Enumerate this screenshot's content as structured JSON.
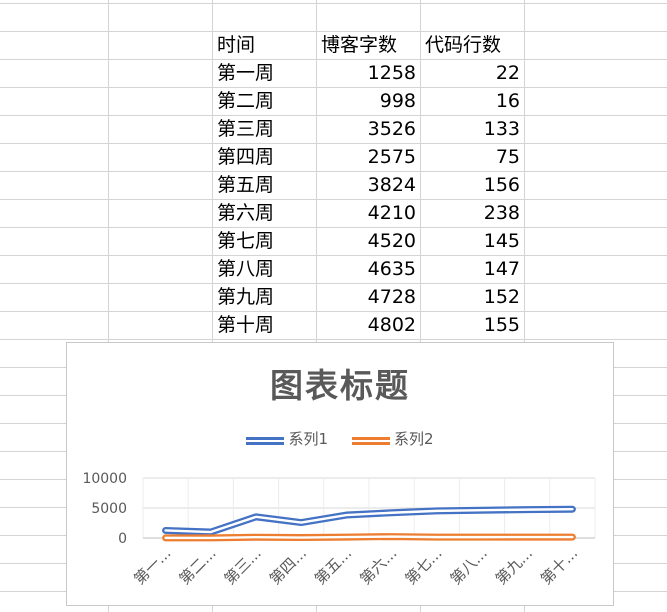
{
  "table": {
    "headers": [
      "时间",
      "博客字数",
      "代码行数"
    ],
    "rows": [
      [
        "第一周",
        "1258",
        "22"
      ],
      [
        "第二周",
        "998",
        "16"
      ],
      [
        "第三周",
        "3526",
        "133"
      ],
      [
        "第四周",
        "2575",
        "75"
      ],
      [
        "第五周",
        "3824",
        "156"
      ],
      [
        "第六周",
        "4210",
        "238"
      ],
      [
        "第七周",
        "4520",
        "145"
      ],
      [
        "第八周",
        "4635",
        "147"
      ],
      [
        "第九周",
        "4728",
        "152"
      ],
      [
        "第十周",
        "4802",
        "155"
      ]
    ]
  },
  "chart_data": {
    "type": "line",
    "title": "图表标题",
    "categories": [
      "第一周",
      "第二周",
      "第三周",
      "第四周",
      "第五周",
      "第六周",
      "第七周",
      "第八周",
      "第九周",
      "第十周"
    ],
    "tick_labels": [
      "第一...",
      "第二...",
      "第三...",
      "第四...",
      "第五...",
      "第六...",
      "第七...",
      "第八...",
      "第九...",
      "第十..."
    ],
    "series": [
      {
        "name": "系列1",
        "color": "#4472c4",
        "values": [
          1258,
          998,
          3526,
          2575,
          3824,
          4210,
          4520,
          4635,
          4728,
          4802
        ]
      },
      {
        "name": "系列2",
        "color": "#ed7d31",
        "values": [
          22,
          16,
          133,
          75,
          156,
          238,
          145,
          147,
          152,
          155
        ]
      }
    ],
    "ylim": [
      0,
      10000
    ],
    "yticks": [
      "0",
      "5000",
      "10000"
    ],
    "legend_position": "top",
    "grid": true,
    "double_line_style": true
  },
  "colors": {
    "gridline": "#d4d4d4",
    "chart_border": "#c8c8c8",
    "title_text": "#595959",
    "axis_text": "#595959"
  }
}
